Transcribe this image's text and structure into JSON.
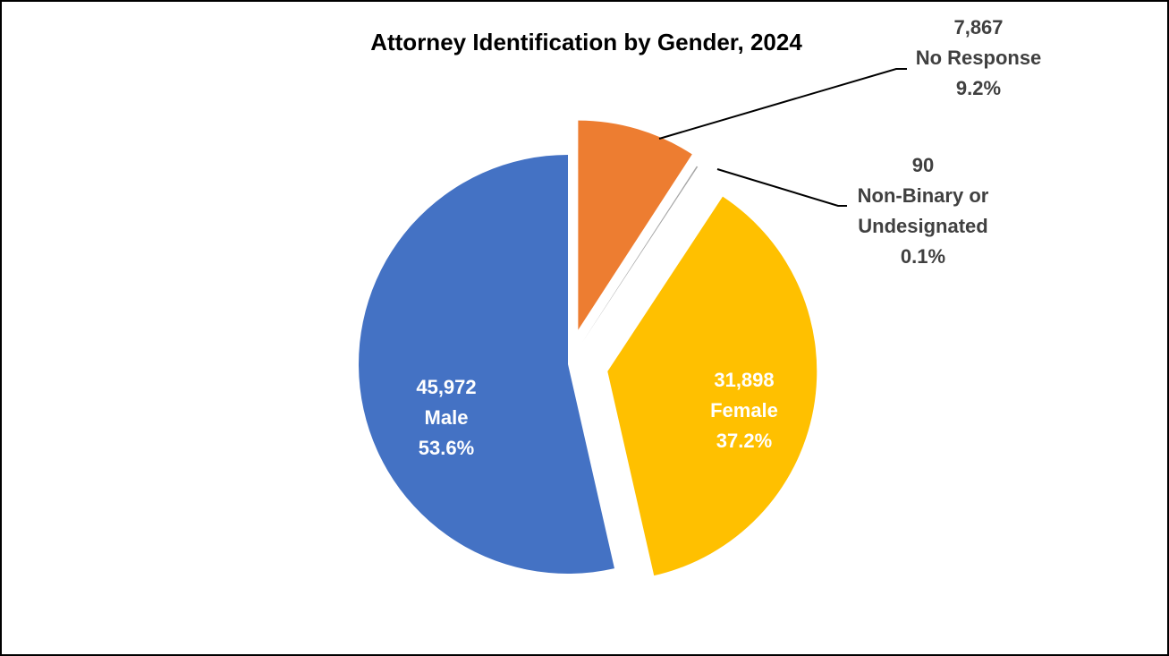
{
  "chart_data": {
    "type": "pie",
    "title": "Attorney Identification by Gender, 2024",
    "categories": [
      "No Response",
      "Non-Binary or Undesignated",
      "Female",
      "Male"
    ],
    "values": [
      7867,
      90,
      31898,
      45972
    ],
    "value_labels": [
      "7,867",
      "90",
      "31,898",
      "45,972"
    ],
    "percent_labels": [
      "9.2%",
      "0.1%",
      "37.2%",
      "53.6%"
    ],
    "colors": [
      "#ed7d31",
      "#a5a5a5",
      "#ffc000",
      "#4472c4"
    ]
  }
}
